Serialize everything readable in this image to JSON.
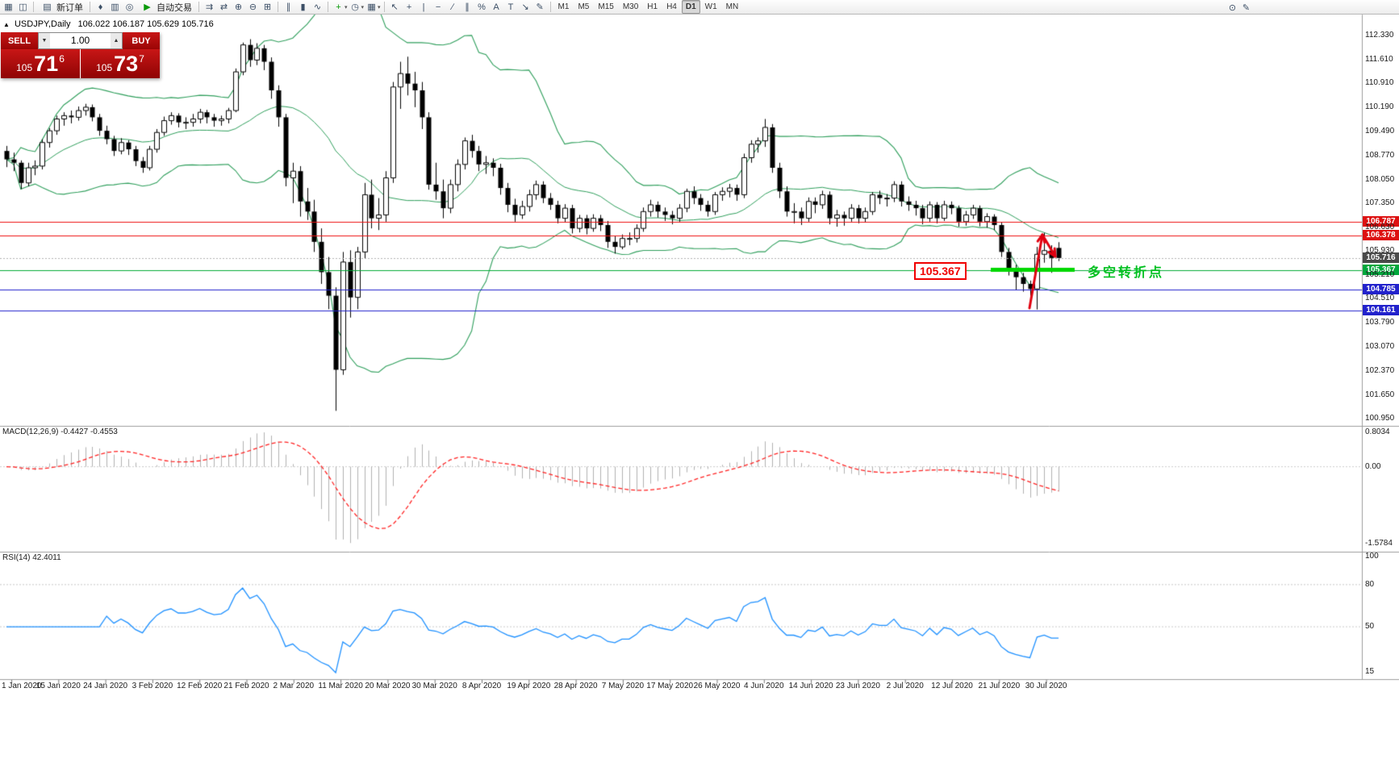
{
  "toolbar": {
    "new_order_label": "新订单",
    "autotrading_label": "自动交易",
    "caret_glyph": "▾",
    "left_icons": [
      {
        "name": "new-chart-icon",
        "glyph": "▦"
      },
      {
        "name": "profiles-icon",
        "glyph": "◫"
      }
    ],
    "new_order_icon": "▤",
    "mid_icons": [
      {
        "name": "alerts-icon",
        "glyph": "♦"
      },
      {
        "name": "market-watch-icon",
        "glyph": "▥"
      },
      {
        "name": "web-terminal-icon",
        "glyph": "◎"
      }
    ],
    "autotrading_icon": "▶",
    "chart_icons": [
      {
        "name": "auto-scroll-icon",
        "glyph": "⇉"
      },
      {
        "name": "chart-shift-icon",
        "glyph": "⇄"
      },
      {
        "name": "zoom-in-icon",
        "glyph": "⊕"
      },
      {
        "name": "zoom-out-icon",
        "glyph": "⊖"
      },
      {
        "name": "tile-windows-icon",
        "glyph": "⊞"
      }
    ],
    "type_icons": [
      {
        "name": "bar-chart-icon",
        "glyph": "∥"
      },
      {
        "name": "candlestick-icon",
        "glyph": "▮"
      },
      {
        "name": "line-chart-icon",
        "glyph": "∿"
      }
    ],
    "indicator_icons": [
      {
        "name": "add-indicator-icon",
        "glyph": "+",
        "dropdown": true
      },
      {
        "name": "periods-icon",
        "glyph": "◷",
        "dropdown": true
      },
      {
        "name": "templates-icon",
        "glyph": "▦",
        "dropdown": true
      }
    ],
    "draw_icons": [
      {
        "name": "cursor-icon",
        "glyph": "↖"
      },
      {
        "name": "crosshair-icon",
        "glyph": "+"
      },
      {
        "name": "vertical-line-icon",
        "glyph": "|"
      },
      {
        "name": "horizontal-line-icon",
        "glyph": "−"
      },
      {
        "name": "trendline-icon",
        "glyph": "∕"
      },
      {
        "name": "channel-icon",
        "glyph": "∥"
      },
      {
        "name": "fibonacci-icon",
        "glyph": "%"
      },
      {
        "name": "text-icon",
        "glyph": "A"
      },
      {
        "name": "text-label-icon",
        "glyph": "T"
      },
      {
        "name": "arrow-tool-icon",
        "glyph": "↘"
      },
      {
        "name": "freehand-icon",
        "glyph": "✎"
      }
    ],
    "timeframes": [
      "M1",
      "M5",
      "M15",
      "M30",
      "H1",
      "H4",
      "D1",
      "W1",
      "MN"
    ],
    "active_timeframe": "D1",
    "right_icons": [
      {
        "name": "search-icon",
        "glyph": "⊙"
      },
      {
        "name": "edit-icon",
        "glyph": "✎"
      }
    ]
  },
  "symbol_bar": {
    "info": "USDJPY,Daily",
    "ohlc": "106.022 106.187 105.629 105.716"
  },
  "trade_panel": {
    "sell_label": "SELL",
    "buy_label": "BUY",
    "volume": "1.00",
    "spin_down": "▼",
    "spin_up": "▲",
    "sell_price_head": "105",
    "sell_price_big": "71",
    "sell_price_sup": "6",
    "buy_price_head": "105",
    "buy_price_big": "73",
    "buy_price_sup": "7"
  },
  "annotations": {
    "level_box": "105.367",
    "note_text": "多空转折点",
    "note_color": "#00c020"
  },
  "chart_data": {
    "type": "candlestick",
    "symbol": "USDJPY",
    "period": "Daily",
    "y_axis_labels": [
      "112.330",
      "111.610",
      "110.910",
      "110.190",
      "109.490",
      "108.770",
      "108.050",
      "107.350",
      "106.630",
      "105.930",
      "105.210",
      "104.510",
      "103.790",
      "103.070",
      "102.370",
      "101.650",
      "100.950"
    ],
    "x_axis_labels": [
      "1 Jan 2020",
      "15 Jan 2020",
      "24 Jan 2020",
      "3 Feb 2020",
      "12 Feb 2020",
      "21 Feb 2020",
      "2 Mar 2020",
      "11 Mar 2020",
      "20 Mar 2020",
      "30 Mar 2020",
      "8 Apr 2020",
      "19 Apr 2020",
      "28 Apr 2020",
      "7 May 2020",
      "17 May 2020",
      "26 May 2020",
      "4 Jun 2020",
      "14 Jun 2020",
      "23 Jun 2020",
      "2 Jul 2020",
      "12 Jul 2020",
      "21 Jul 2020",
      "30 Jul 2020"
    ],
    "candles": [
      [
        108.9,
        109.05,
        108.42,
        108.65
      ],
      [
        108.65,
        108.85,
        108.3,
        108.55
      ],
      [
        108.55,
        108.62,
        107.77,
        107.95
      ],
      [
        107.95,
        108.55,
        107.85,
        108.4
      ],
      [
        108.4,
        108.62,
        108.18,
        108.45
      ],
      [
        108.45,
        109.25,
        108.35,
        109.15
      ],
      [
        109.15,
        109.58,
        109.0,
        109.5
      ],
      [
        109.5,
        109.95,
        109.38,
        109.85
      ],
      [
        109.85,
        110.05,
        109.65,
        109.95
      ],
      [
        109.95,
        110.1,
        109.72,
        109.9
      ],
      [
        109.9,
        110.22,
        109.8,
        110.1
      ],
      [
        110.1,
        110.3,
        109.95,
        110.2
      ],
      [
        110.2,
        110.28,
        109.78,
        109.9
      ],
      [
        109.9,
        110.0,
        109.35,
        109.5
      ],
      [
        109.5,
        109.65,
        109.1,
        109.25
      ],
      [
        109.25,
        109.35,
        108.75,
        108.9
      ],
      [
        108.9,
        109.28,
        108.8,
        109.15
      ],
      [
        109.15,
        109.22,
        108.78,
        108.95
      ],
      [
        108.95,
        109.05,
        108.45,
        108.6
      ],
      [
        108.6,
        108.72,
        108.25,
        108.4
      ],
      [
        108.4,
        109.05,
        108.32,
        108.95
      ],
      [
        108.95,
        109.55,
        108.85,
        109.45
      ],
      [
        109.45,
        109.92,
        109.35,
        109.8
      ],
      [
        109.8,
        110.05,
        109.68,
        109.95
      ],
      [
        109.95,
        110.02,
        109.6,
        109.75
      ],
      [
        109.75,
        109.9,
        109.55,
        109.75
      ],
      [
        109.75,
        110.0,
        109.62,
        109.85
      ],
      [
        109.85,
        110.15,
        109.72,
        110.05
      ],
      [
        110.05,
        110.12,
        109.72,
        109.9
      ],
      [
        109.9,
        110.0,
        109.62,
        109.8
      ],
      [
        109.8,
        109.95,
        109.65,
        109.85
      ],
      [
        109.85,
        110.18,
        109.72,
        110.1
      ],
      [
        110.1,
        111.35,
        110.05,
        111.25
      ],
      [
        111.25,
        112.12,
        111.15,
        112.05
      ],
      [
        112.05,
        112.22,
        111.4,
        111.6
      ],
      [
        111.6,
        112.1,
        111.45,
        111.95
      ],
      [
        111.95,
        112.05,
        111.3,
        111.55
      ],
      [
        111.55,
        111.68,
        110.45,
        110.7
      ],
      [
        110.7,
        110.85,
        109.62,
        109.9
      ],
      [
        109.9,
        110.0,
        107.85,
        108.1
      ],
      [
        108.1,
        108.55,
        107.35,
        108.3
      ],
      [
        108.3,
        108.45,
        106.95,
        107.4
      ],
      [
        107.4,
        107.8,
        106.85,
        107.1
      ],
      [
        107.1,
        107.45,
        105.9,
        106.2
      ],
      [
        106.2,
        106.6,
        104.95,
        105.3
      ],
      [
        105.3,
        105.75,
        104.2,
        104.6
      ],
      [
        104.6,
        104.85,
        101.18,
        102.4
      ],
      [
        102.4,
        105.9,
        102.25,
        105.6
      ],
      [
        105.6,
        105.95,
        103.95,
        104.55
      ],
      [
        104.55,
        106.05,
        104.2,
        105.9
      ],
      [
        105.9,
        107.95,
        105.7,
        107.6
      ],
      [
        107.6,
        108.05,
        106.6,
        106.9
      ],
      [
        106.9,
        107.5,
        106.55,
        107.0
      ],
      [
        107.0,
        108.3,
        106.8,
        108.1
      ],
      [
        108.1,
        110.95,
        107.95,
        110.8
      ],
      [
        110.8,
        111.55,
        110.15,
        111.2
      ],
      [
        111.2,
        111.7,
        110.55,
        110.9
      ],
      [
        110.9,
        111.25,
        110.2,
        110.7
      ],
      [
        110.7,
        110.95,
        109.55,
        109.9
      ],
      [
        109.9,
        110.05,
        107.75,
        107.9
      ],
      [
        107.9,
        108.55,
        107.45,
        107.7
      ],
      [
        107.7,
        108.05,
        106.9,
        107.2
      ],
      [
        107.2,
        108.05,
        107.05,
        107.9
      ],
      [
        107.9,
        108.65,
        107.7,
        108.5
      ],
      [
        108.5,
        109.3,
        108.35,
        109.2
      ],
      [
        109.2,
        109.38,
        108.7,
        108.9
      ],
      [
        108.9,
        109.05,
        108.3,
        108.5
      ],
      [
        108.5,
        108.75,
        108.22,
        108.55
      ],
      [
        108.55,
        108.68,
        108.15,
        108.4
      ],
      [
        108.4,
        108.52,
        107.6,
        107.8
      ],
      [
        107.8,
        107.95,
        107.08,
        107.3
      ],
      [
        107.3,
        107.48,
        106.8,
        107.0
      ],
      [
        107.0,
        107.42,
        106.88,
        107.25
      ],
      [
        107.25,
        107.75,
        107.1,
        107.6
      ],
      [
        107.6,
        108.02,
        107.45,
        107.9
      ],
      [
        107.9,
        108.0,
        107.35,
        107.5
      ],
      [
        107.5,
        107.65,
        107.15,
        107.3
      ],
      [
        107.3,
        107.42,
        106.75,
        106.9
      ],
      [
        106.9,
        107.32,
        106.78,
        107.2
      ],
      [
        107.2,
        107.3,
        106.45,
        106.6
      ],
      [
        106.6,
        107.0,
        106.48,
        106.9
      ],
      [
        106.9,
        107.0,
        106.42,
        106.6
      ],
      [
        106.6,
        107.02,
        106.5,
        106.9
      ],
      [
        106.9,
        107.0,
        106.52,
        106.7
      ],
      [
        106.7,
        106.82,
        106.02,
        106.2
      ],
      [
        106.2,
        106.38,
        105.85,
        106.05
      ],
      [
        106.05,
        106.42,
        105.98,
        106.3
      ],
      [
        106.3,
        106.48,
        106.1,
        106.3
      ],
      [
        106.3,
        106.72,
        106.18,
        106.6
      ],
      [
        106.6,
        107.22,
        106.5,
        107.1
      ],
      [
        107.1,
        107.45,
        106.95,
        107.3
      ],
      [
        107.3,
        107.4,
        106.92,
        107.1
      ],
      [
        107.1,
        107.22,
        106.82,
        107.0
      ],
      [
        107.0,
        107.12,
        106.72,
        106.9
      ],
      [
        106.9,
        107.32,
        106.8,
        107.2
      ],
      [
        107.2,
        107.78,
        107.08,
        107.7
      ],
      [
        107.7,
        107.85,
        107.32,
        107.5
      ],
      [
        107.5,
        107.62,
        107.12,
        107.3
      ],
      [
        107.3,
        107.42,
        106.95,
        107.1
      ],
      [
        107.1,
        107.68,
        107.0,
        107.6
      ],
      [
        107.6,
        107.82,
        107.42,
        107.7
      ],
      [
        107.7,
        107.92,
        107.52,
        107.8
      ],
      [
        107.8,
        107.9,
        107.42,
        107.6
      ],
      [
        107.6,
        108.82,
        107.5,
        108.7
      ],
      [
        108.7,
        109.22,
        108.55,
        109.1
      ],
      [
        109.1,
        109.3,
        108.85,
        109.2
      ],
      [
        109.2,
        109.85,
        109.02,
        109.6
      ],
      [
        109.6,
        109.7,
        108.25,
        108.4
      ],
      [
        108.4,
        108.55,
        107.5,
        107.7
      ],
      [
        107.7,
        107.85,
        106.95,
        107.1
      ],
      [
        107.1,
        107.35,
        106.75,
        107.1
      ],
      [
        107.1,
        107.22,
        106.7,
        106.9
      ],
      [
        106.9,
        107.52,
        106.8,
        107.4
      ],
      [
        107.4,
        107.52,
        107.05,
        107.3
      ],
      [
        107.3,
        107.72,
        107.18,
        107.6
      ],
      [
        107.6,
        107.7,
        106.72,
        106.9
      ],
      [
        106.9,
        107.15,
        106.65,
        107.0
      ],
      [
        107.0,
        107.1,
        106.68,
        106.9
      ],
      [
        106.9,
        107.32,
        106.8,
        107.2
      ],
      [
        107.2,
        107.3,
        106.75,
        106.9
      ],
      [
        106.9,
        107.22,
        106.78,
        107.1
      ],
      [
        107.1,
        107.68,
        107.0,
        107.6
      ],
      [
        107.6,
        107.72,
        107.32,
        107.5
      ],
      [
        107.5,
        107.62,
        107.25,
        107.5
      ],
      [
        107.5,
        108.0,
        107.38,
        107.9
      ],
      [
        107.9,
        108.0,
        107.25,
        107.4
      ],
      [
        107.4,
        107.55,
        107.12,
        107.3
      ],
      [
        107.3,
        107.42,
        106.98,
        107.2
      ],
      [
        107.2,
        107.3,
        106.72,
        106.9
      ],
      [
        106.9,
        107.4,
        106.8,
        107.3
      ],
      [
        107.3,
        107.38,
        106.75,
        106.9
      ],
      [
        106.9,
        107.42,
        106.82,
        107.3
      ],
      [
        107.3,
        107.4,
        107.02,
        107.2
      ],
      [
        107.2,
        107.28,
        106.65,
        106.8
      ],
      [
        106.8,
        107.12,
        106.68,
        107.0
      ],
      [
        107.0,
        107.3,
        106.88,
        107.2
      ],
      [
        107.2,
        107.28,
        106.66,
        106.8
      ],
      [
        106.8,
        107.05,
        106.62,
        106.95
      ],
      [
        106.95,
        107.02,
        106.55,
        106.7
      ],
      [
        106.7,
        106.78,
        105.75,
        105.9
      ],
      [
        105.9,
        106.02,
        105.2,
        105.4
      ],
      [
        105.4,
        105.52,
        104.78,
        105.15
      ],
      [
        105.15,
        105.28,
        104.72,
        104.95
      ],
      [
        104.95,
        105.05,
        104.6,
        104.8
      ],
      [
        104.8,
        106.05,
        104.19,
        105.83
      ],
      [
        105.83,
        106.47,
        105.58,
        105.94
      ],
      [
        105.94,
        106.1,
        105.28,
        105.72
      ],
      [
        106.02,
        106.19,
        105.63,
        105.72
      ]
    ],
    "bollinger": {
      "period": 20,
      "deviation": 2,
      "color": "#2e9e5b"
    },
    "levels": [
      {
        "price": 106.787,
        "label": "106.787",
        "color": "#ee1111",
        "tag_bg": "#dd1111"
      },
      {
        "price": 106.378,
        "label": "106.378",
        "color": "#ee1111",
        "tag_bg": "#dd1111"
      },
      {
        "price": 105.716,
        "label": "105.716",
        "color": "#b0b0b0",
        "tag_bg": "#4a4a4a",
        "style": "current"
      },
      {
        "price": 105.367,
        "label": "105.367",
        "color": "#00aa33",
        "tag_bg": "#00a73c"
      },
      {
        "price": 104.785,
        "label": "104.785",
        "color": "#2222cc",
        "tag_bg": "#2222cc"
      },
      {
        "price": 104.161,
        "label": "104.161",
        "color": "#2222cc",
        "tag_bg": "#2222cc"
      }
    ],
    "thick_level": {
      "price": 105.367,
      "color": "#00d800"
    },
    "macd": {
      "label": "MACD(12,26,9) -0.4427 -0.4553",
      "fast": 12,
      "slow": 26,
      "signal": 9,
      "scale_labels": [
        "0.8034",
        "0.00",
        "-1.5784"
      ],
      "histogram_color": "#b0b0b0",
      "signal_color": "#ff2222"
    },
    "rsi": {
      "label": "RSI(14) 42.4011",
      "period": 14,
      "scale_labels": [
        "100",
        "80",
        "50",
        "15"
      ],
      "color": "#1e90ff"
    }
  }
}
